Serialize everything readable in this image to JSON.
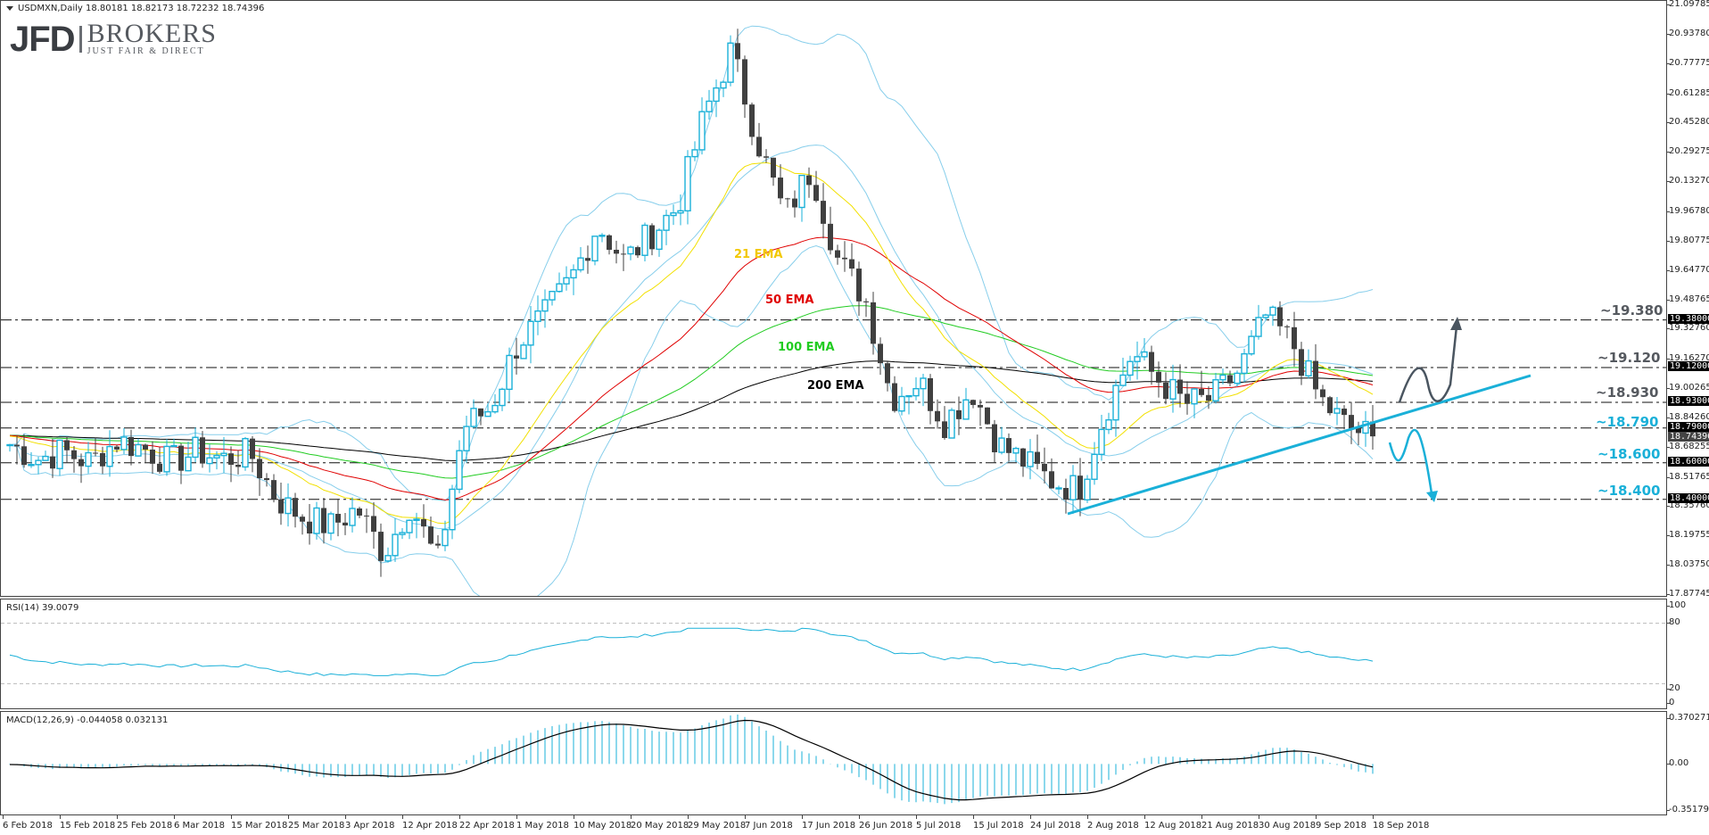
{
  "header": {
    "symbol_line": "USDMXN,Daily  18.80181 18.82173 18.72232 18.74396"
  },
  "logo": {
    "jfd": "JFD",
    "brokers": "BROKERS",
    "tagline": "JUST FAIR & DIRECT"
  },
  "price_axis": {
    "ticks": [
      "21.09785",
      "20.93780",
      "20.77775",
      "20.61285",
      "20.45280",
      "20.29275",
      "20.13270",
      "19.96780",
      "19.80775",
      "19.64770",
      "19.48765",
      "19.32760",
      "19.16270",
      "19.00265",
      "18.84260",
      "18.68255",
      "18.51765",
      "18.35760",
      "18.19755",
      "18.03750",
      "17.87745"
    ],
    "level_tags": [
      "19.38000",
      "19.12000",
      "18.93000",
      "18.79000",
      "18.60000",
      "18.40000"
    ],
    "current_price": "18.74396"
  },
  "levels": [
    {
      "label": "~19.380",
      "value": 19.38,
      "color": "#55595f"
    },
    {
      "label": "~19.120",
      "value": 19.12,
      "color": "#55595f"
    },
    {
      "label": "~18.930",
      "value": 18.93,
      "color": "#55595f"
    },
    {
      "label": "~18.790",
      "value": 18.79,
      "color": "#1ab0d8"
    },
    {
      "label": "~18.600",
      "value": 18.6,
      "color": "#1ab0d8"
    },
    {
      "label": "~18.400",
      "value": 18.4,
      "color": "#1ab0d8"
    }
  ],
  "ema_labels": {
    "ema21": {
      "text": "21 EMA",
      "color": "#f2c800"
    },
    "ema50": {
      "text": "50 EMA",
      "color": "#e00000"
    },
    "ema100": {
      "text": "100 EMA",
      "color": "#22cc22"
    },
    "ema200": {
      "text": "200 EMA",
      "color": "#000000"
    }
  },
  "colors": {
    "bull_candle": "#1ab0d8",
    "bear_candle": "#404040",
    "bollinger": "#87ceeb",
    "trendline": "#1ab0d8",
    "rsi_line": "#1ab0d8",
    "macd_hist": "#1ab0d8",
    "macd_signal": "#000000",
    "up_arrow": "#4a5560",
    "down_arrow": "#1ab0d8"
  },
  "rsi": {
    "title": "RSI(14) 39.0079",
    "ticks": [
      "100",
      "80",
      "20",
      "0"
    ]
  },
  "macd": {
    "title": "MACD(12,26,9) -0.044058 0.032131",
    "ticks": [
      "0.370271",
      "0.00",
      "-0.351796"
    ]
  },
  "date_axis": [
    "6 Feb 2018",
    "15 Feb 2018",
    "25 Feb 2018",
    "6 Mar 2018",
    "15 Mar 2018",
    "25 Mar 2018",
    "3 Apr 2018",
    "12 Apr 2018",
    "22 Apr 2018",
    "1 May 2018",
    "10 May 2018",
    "20 May 2018",
    "29 May 2018",
    "7 Jun 2018",
    "17 Jun 2018",
    "26 Jun 2018",
    "5 Jul 2018",
    "15 Jul 2018",
    "24 Jul 2018",
    "2 Aug 2018",
    "12 Aug 2018",
    "21 Aug 2018",
    "30 Aug 2018",
    "9 Sep 2018",
    "18 Sep 2018"
  ],
  "chart_data": {
    "type": "candlestick",
    "title": "USDMXN, Daily",
    "ohlc_last": {
      "open": 18.80181,
      "high": 18.82173,
      "low": 18.72232,
      "close": 18.74396
    },
    "ylim": [
      17.87745,
      21.09785
    ],
    "x": [
      "6 Feb 2018",
      "15 Feb 2018",
      "25 Feb 2018",
      "6 Mar 2018",
      "15 Mar 2018",
      "25 Mar 2018",
      "3 Apr 2018",
      "12 Apr 2018",
      "22 Apr 2018",
      "1 May 2018",
      "10 May 2018",
      "20 May 2018",
      "29 May 2018",
      "7 Jun 2018",
      "17 Jun 2018",
      "26 Jun 2018",
      "5 Jul 2018",
      "15 Jul 2018",
      "24 Jul 2018",
      "2 Aug 2018",
      "12 Aug 2018",
      "21 Aug 2018",
      "30 Aug 2018",
      "9 Sep 2018",
      "18 Sep 2018"
    ],
    "close_approx": [
      18.7,
      18.62,
      18.66,
      18.6,
      18.72,
      18.68,
      18.6,
      18.66,
      18.62,
      18.65,
      18.4,
      18.3,
      18.25,
      18.35,
      18.1,
      18.38,
      18.05,
      18.8,
      18.9,
      19.25,
      19.4,
      19.6,
      19.9,
      19.7,
      19.85,
      20.0,
      20.5,
      20.85,
      20.35,
      19.95,
      20.2,
      19.7,
      19.5,
      18.95,
      19.05,
      18.82,
      19.0,
      18.7,
      18.6,
      18.5,
      18.45,
      18.88,
      19.2,
      19.05,
      18.92,
      18.95,
      19.1,
      19.4,
      19.25,
      18.95,
      18.8,
      18.74
    ],
    "horizontal_levels": [
      19.38,
      19.12,
      18.93,
      18.79,
      18.6,
      18.4
    ],
    "indicators": [
      "Bollinger Bands",
      "EMA 21",
      "EMA 50",
      "EMA 100",
      "EMA 200",
      "RSI(14)",
      "MACD(12,26,9)"
    ],
    "rsi_last": 39.0079,
    "rsi_levels": [
      20,
      80
    ],
    "macd_last": {
      "macd": -0.044058,
      "signal": 0.032131
    },
    "macd_range": [
      -0.351796,
      0.370271
    ],
    "annotations": [
      "21 EMA",
      "50 EMA",
      "100 EMA",
      "200 EMA",
      "~19.380",
      "~19.120",
      "~18.930",
      "~18.790",
      "~18.600",
      "~18.400",
      "rising trendline",
      "bullish scenario arrow",
      "bearish scenario arrow"
    ]
  }
}
